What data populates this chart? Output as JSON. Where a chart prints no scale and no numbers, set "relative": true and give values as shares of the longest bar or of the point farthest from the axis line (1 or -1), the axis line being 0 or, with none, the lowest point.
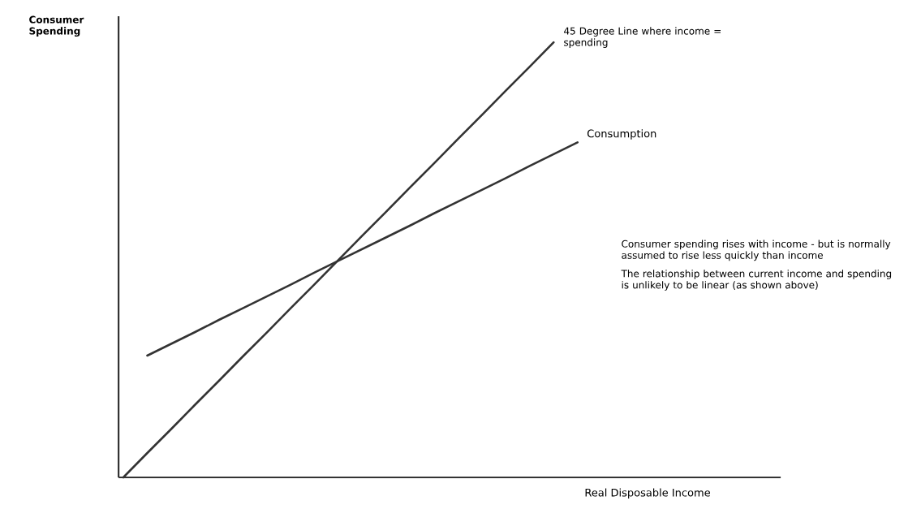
{
  "chart_data": {
    "type": "line",
    "relative": true,
    "xlabel": "Real Disposable Income",
    "ylabel": "Consumer Spending",
    "categories": [
      null,
      null,
      null,
      null,
      null,
      null,
      null,
      null,
      null,
      null,
      null,
      null,
      null,
      null,
      null,
      null,
      null,
      null,
      null,
      null
    ],
    "series": [
      {
        "name": "45 Degree Line where income = spending",
        "color": "#333333",
        "values": [
          0.0,
          0.056,
          0.111,
          0.167,
          0.222,
          0.278,
          0.333,
          0.389,
          0.444,
          0.5,
          0.556,
          0.611,
          0.667,
          0.722,
          0.778,
          0.833,
          0.889,
          0.944,
          1.0,
          null
        ]
      },
      {
        "name": "Consumption",
        "color": "#333333",
        "values": [
          null,
          0.28,
          0.307,
          0.334,
          0.362,
          0.389,
          0.416,
          0.443,
          0.471,
          0.498,
          0.525,
          0.552,
          0.579,
          0.607,
          0.634,
          0.661,
          0.688,
          0.716,
          0.743,
          0.77
        ]
      }
    ],
    "annotations": [
      "Consumer spending rises with income - but is normally assumed to rise less quickly than income",
      "The relationship between current income and spending is unlikely to be linear (as shown above)"
    ],
    "marker": "none",
    "line_style": "solid"
  }
}
